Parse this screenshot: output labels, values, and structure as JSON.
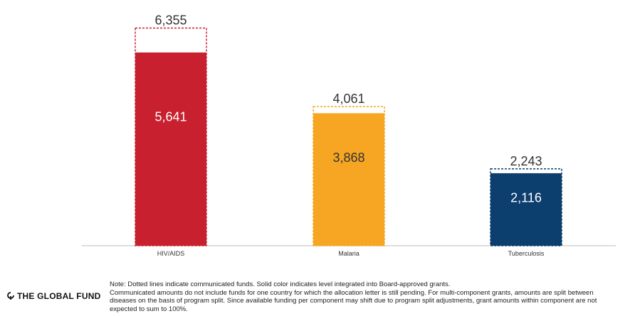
{
  "chart_data": {
    "type": "bar",
    "categories": [
      "HIV/AIDS",
      "Malaria",
      "Tuberculosis"
    ],
    "series": [
      {
        "values": [
          5641,
          3868,
          2116
        ]
      },
      {
        "values": [
          6355,
          4061,
          2243
        ]
      }
    ],
    "data_labels": {
      "integrated": [
        "5,641",
        "3,868",
        "2,116"
      ],
      "communicated": [
        "6,355",
        "4,061",
        "2,243"
      ]
    },
    "colors": [
      "#c8202f",
      "#f6a623",
      "#0c3e6e"
    ],
    "ylim": [
      0,
      6800
    ],
    "grid": false,
    "legend": "none"
  },
  "footer": {
    "logo_text": "THE GLOBAL FUND",
    "notes": [
      "Note: Dotted lines indicate communicated funds. Solid color indicates level integrated into Board-approved grants.",
      "Communicated amounts do not include funds for one country for which the allocation letter is still pending. For multi-component grants, amounts are split between",
      "diseases on the basis of program split.  Since available funding per component may shift due to program split adjustments, grant amounts within component are not",
      "expected to sum to 100%."
    ]
  }
}
